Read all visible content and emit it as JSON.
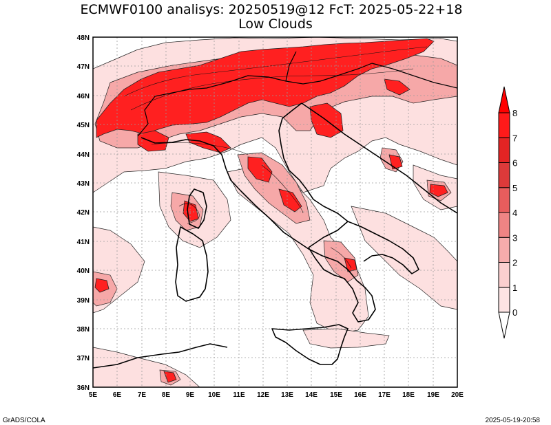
{
  "title_line1": "ECMWF0100 analisys: 20250519@12 FcT: 2025-05-22+18",
  "title_line2": "Low Clouds",
  "footer_left": "GrADS/COLA",
  "footer_right": "2025-05-19-20:58",
  "x_ticks": [
    "5E",
    "6E",
    "7E",
    "8E",
    "9E",
    "10E",
    "11E",
    "12E",
    "13E",
    "14E",
    "15E",
    "16E",
    "17E",
    "18E",
    "19E",
    "20E"
  ],
  "y_ticks": [
    "48N",
    "47N",
    "46N",
    "45N",
    "44N",
    "43N",
    "42N",
    "41N",
    "40N",
    "39N",
    "38N",
    "37N",
    "36N"
  ],
  "colorbar": {
    "labels": [
      "0",
      "1",
      "2",
      "3",
      "4",
      "5",
      "6",
      "7",
      "8"
    ],
    "colors": [
      "#fde4e4",
      "#fbcfcf",
      "#f6acac",
      "#ef8484",
      "#e85d5d",
      "#dd3a3a",
      "#e42424",
      "#ff1a1a"
    ]
  },
  "colors": {
    "grid": "#9a9a9a",
    "cloud_light": "#fde0e0",
    "cloud_mid": "#f6a8a8",
    "cloud_high": "#ff2020"
  }
}
